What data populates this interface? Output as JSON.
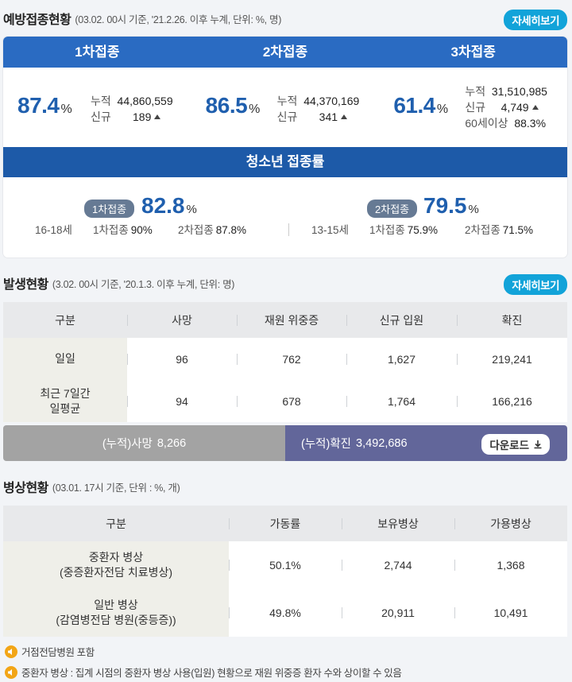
{
  "vaccine": {
    "title": "예방접종현황",
    "subtitle": "(03.02. 00시 기준, '21.2.26. 이후 누계, 단위: %, 명)",
    "more_label": "자세히보기",
    "doses": [
      {
        "header": "1차접종",
        "pct": "87.4",
        "unit": "%",
        "cum_label": "누적",
        "cum": "44,860,559",
        "new_label": "신규",
        "new": "189"
      },
      {
        "header": "2차접종",
        "pct": "86.5",
        "unit": "%",
        "cum_label": "누적",
        "cum": "44,370,169",
        "new_label": "신규",
        "new": "341"
      },
      {
        "header": "3차접종",
        "pct": "61.4",
        "unit": "%",
        "cum_label": "누적",
        "cum": "31,510,985",
        "new_label": "신규",
        "new": "4,749",
        "senior_label": "60세이상",
        "senior": "88.3%"
      }
    ],
    "youth": {
      "title": "청소년 접종률",
      "groups": [
        {
          "age": "16-18세",
          "pill": "1차접종",
          "pct": "82.8",
          "unit": "%",
          "d1_label": "1차접종",
          "d1": "90%",
          "d2_label": "2차접종",
          "d2": "87.8%"
        },
        {
          "age": "13-15세",
          "pill": "2차접종",
          "pct": "79.5",
          "unit": "%",
          "d1_label": "1차접종",
          "d1": "75.9%",
          "d2_label": "2차접종",
          "d2": "71.5%"
        }
      ]
    }
  },
  "outbreak": {
    "title": "발생현황",
    "subtitle": "(3.02. 00시 기준, '20.1.3. 이후 누계, 단위: 명)",
    "more_label": "자세히보기",
    "columns": [
      "구분",
      "사망",
      "재원 위중증",
      "신규 입원",
      "확진"
    ],
    "rows": [
      {
        "label": "일일",
        "values": [
          "96",
          "762",
          "1,627",
          "219,241"
        ]
      },
      {
        "label": "최근 7일간\n일평균",
        "values": [
          "94",
          "678",
          "1,764",
          "166,216"
        ]
      }
    ],
    "cum_death_label": "(누적)사망",
    "cum_death": "8,266",
    "cum_conf_label": "(누적)확진",
    "cum_conf": "3,492,686",
    "download_label": "다운로드"
  },
  "beds": {
    "title": "병상현황",
    "subtitle": "(03.01. 17시 기준, 단위 : %, 개)",
    "columns": [
      "구분",
      "가동률",
      "보유병상",
      "가용병상"
    ],
    "rows": [
      {
        "label": "중환자 병상\n(중증환자전담 치료병상)",
        "values": [
          "50.1%",
          "2,744",
          "1,368"
        ]
      },
      {
        "label": "일반 병상\n(감염병전담 병원(중등증))",
        "values": [
          "49.8%",
          "20,911",
          "10,491"
        ]
      }
    ]
  },
  "notes": [
    "거점전담병원 포함",
    "중환자 병상 : 집계 시점의 중환자 병상 사용(입원) 현황으로 재원 위중증 환자 수와 상이할 수 있음"
  ],
  "colors": {
    "primary": "#2a6bc2",
    "accent": "#12a3d9",
    "confirm_bar": "#62669a"
  }
}
